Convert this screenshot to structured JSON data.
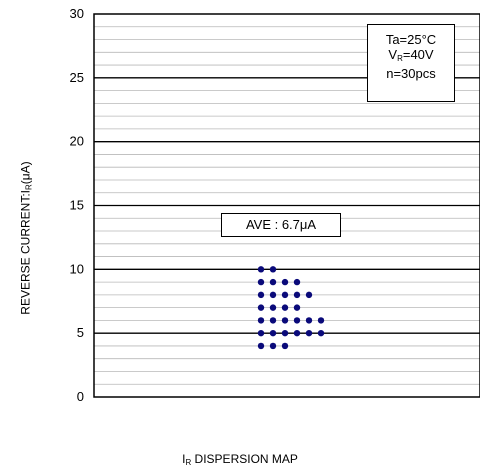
{
  "chart_data": {
    "type": "scatter",
    "title": "",
    "xlabel": {
      "main": "I",
      "sub": "R",
      "rest": " DISPERSION MAP"
    },
    "ylabel": {
      "pre": "REVERSE CURRENT:I",
      "sub": "R",
      "post": "(μA)"
    },
    "ylim": [
      0,
      30
    ],
    "yticks": [
      0,
      5,
      10,
      15,
      20,
      25,
      30
    ],
    "minor_grid_step": 1,
    "grid": true,
    "marker_color": "#0a0a7a",
    "rows": [
      {
        "y": 10,
        "count": 2
      },
      {
        "y": 9,
        "count": 4
      },
      {
        "y": 8,
        "count": 5
      },
      {
        "y": 7,
        "count": 4
      },
      {
        "y": 6,
        "count": 6
      },
      {
        "y": 5,
        "count": 6
      },
      {
        "y": 4,
        "count": 3
      }
    ],
    "annotation": {
      "ave_label": "AVE : 6.7μA"
    },
    "conditions": {
      "line1": "Ta=25°C",
      "line2_pre": "V",
      "line2_sub": "R",
      "line2_post": "=40V",
      "line3": "n=30pcs"
    }
  }
}
